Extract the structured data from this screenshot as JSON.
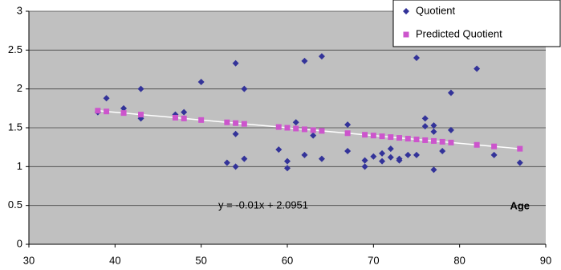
{
  "chart_data": {
    "type": "scatter",
    "equation": "y = -0.01x + 2.0951",
    "x_label": "Age",
    "xlim": [
      30,
      90
    ],
    "xticks": [
      30,
      40,
      50,
      60,
      70,
      80,
      90
    ],
    "ylim": [
      0,
      3
    ],
    "yticks": [
      0,
      0.5,
      1,
      1.5,
      2,
      2.5,
      3
    ],
    "grid": true,
    "legend": "top-right",
    "background": "#c0c0c0",
    "trendline_color": "#ffffff",
    "series": [
      {
        "name": "Quotient",
        "color": "#333399",
        "marker": "diamond",
        "x": [
          38,
          39,
          41,
          43,
          43,
          47,
          48,
          50,
          53,
          54,
          54,
          54,
          55,
          55,
          59,
          60,
          60,
          61,
          62,
          62,
          63,
          64,
          64,
          67,
          67,
          69,
          69,
          70,
          71,
          71,
          72,
          72,
          73,
          73,
          74,
          75,
          75,
          76,
          76,
          77,
          77,
          77,
          78,
          79,
          79,
          82,
          84,
          87
        ],
        "values": [
          1.7,
          1.88,
          1.75,
          2.0,
          1.62,
          1.67,
          1.7,
          2.09,
          1.05,
          2.33,
          1.0,
          1.42,
          2.0,
          1.1,
          1.22,
          1.07,
          0.98,
          1.57,
          2.36,
          1.15,
          1.4,
          2.42,
          1.1,
          1.54,
          1.2,
          1.08,
          1.0,
          1.13,
          1.17,
          1.07,
          1.23,
          1.12,
          1.1,
          1.08,
          1.15,
          2.4,
          1.15,
          1.62,
          1.52,
          1.53,
          1.45,
          0.96,
          1.2,
          1.95,
          1.47,
          2.26,
          1.15,
          1.05
        ]
      },
      {
        "name": "Predicted Quotient",
        "color": "#cc55cc",
        "marker": "square",
        "x": [
          38,
          39,
          41,
          43,
          47,
          48,
          50,
          53,
          54,
          55,
          59,
          60,
          61,
          62,
          63,
          64,
          67,
          69,
          70,
          71,
          72,
          73,
          74,
          75,
          76,
          77,
          78,
          79,
          82,
          84,
          87
        ],
        "values": [
          1.72,
          1.71,
          1.69,
          1.67,
          1.63,
          1.62,
          1.6,
          1.57,
          1.56,
          1.55,
          1.51,
          1.5,
          1.49,
          1.48,
          1.47,
          1.46,
          1.43,
          1.41,
          1.4,
          1.39,
          1.38,
          1.37,
          1.36,
          1.35,
          1.34,
          1.33,
          1.32,
          1.31,
          1.28,
          1.26,
          1.23
        ]
      }
    ]
  }
}
